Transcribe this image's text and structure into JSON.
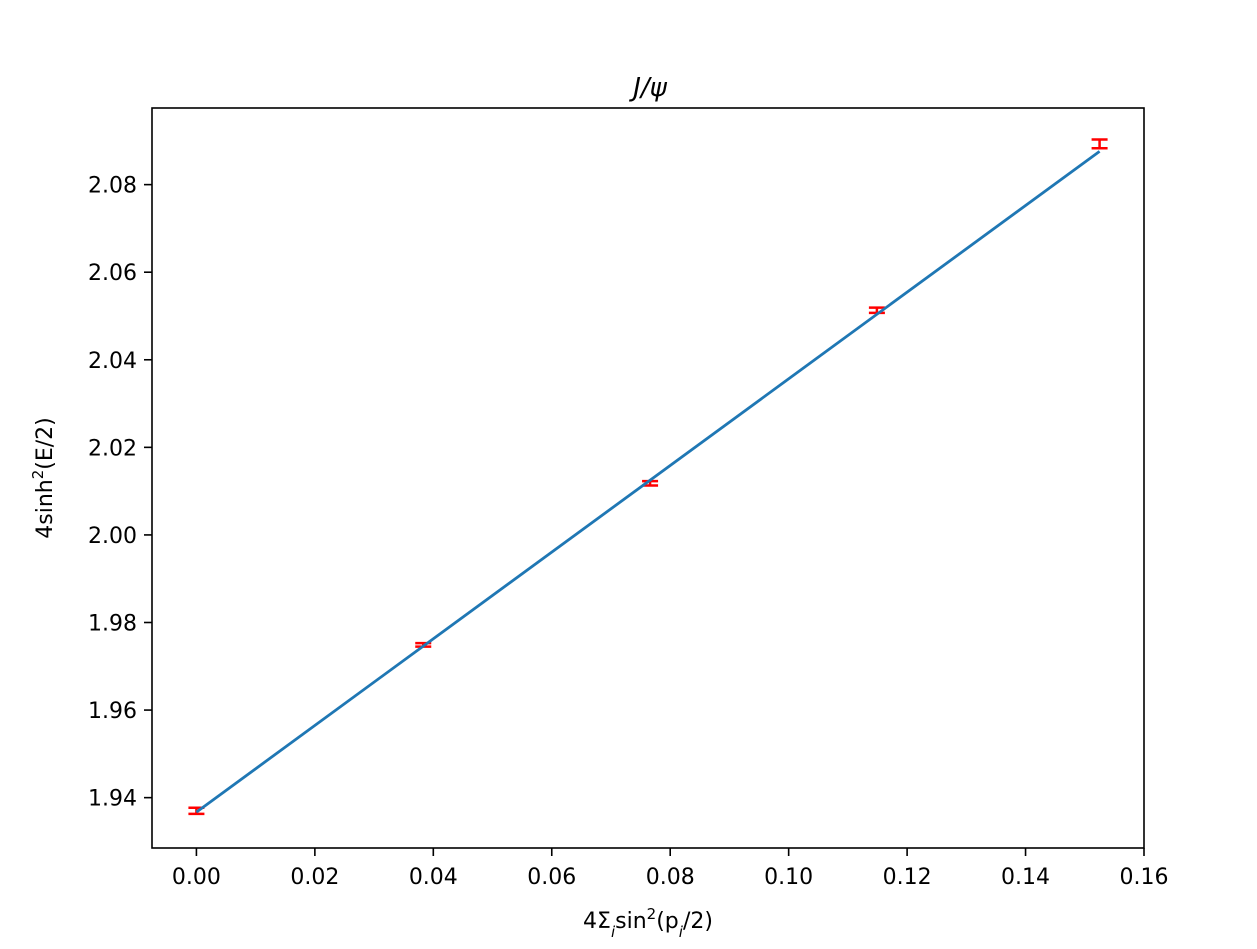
{
  "chart_data": {
    "type": "scatter",
    "title": "J/ψ",
    "xlabel": {
      "base": "4Σ",
      "sub1": "i",
      "mid": "sin",
      "sup": "2",
      "open": "(p",
      "sub2": "i",
      "close": "/2)"
    },
    "ylabel": {
      "base": "4sinh",
      "sup": "2",
      "rest": "(E/2)"
    },
    "xlim": [
      -0.0075,
      0.16
    ],
    "ylim": [
      1.9285,
      2.0975
    ],
    "xticks": [
      0.0,
      0.02,
      0.04,
      0.06,
      0.08,
      0.1,
      0.12,
      0.14,
      0.16
    ],
    "xtick_labels": [
      "0.00",
      "0.02",
      "0.04",
      "0.06",
      "0.08",
      "0.10",
      "0.12",
      "0.14",
      "0.16"
    ],
    "yticks": [
      1.94,
      1.96,
      1.98,
      2.0,
      2.02,
      2.04,
      2.06,
      2.08
    ],
    "ytick_labels": [
      "1.94",
      "1.96",
      "1.98",
      "2.00",
      "2.02",
      "2.04",
      "2.06",
      "2.08"
    ],
    "grid": false,
    "series": [
      {
        "kind": "errorbar",
        "color": "#ff0000",
        "x": [
          0.0,
          0.0383,
          0.0766,
          0.1149,
          0.1525
        ],
        "y": [
          1.937,
          1.9749,
          2.0118,
          2.0513,
          2.0893
        ],
        "yerr": [
          0.0007,
          0.0004,
          0.0005,
          0.0006,
          0.001
        ]
      },
      {
        "kind": "line",
        "color": "#1f77b4",
        "x": [
          0.0,
          0.1525
        ],
        "y": [
          1.9367,
          2.0876
        ]
      }
    ]
  }
}
